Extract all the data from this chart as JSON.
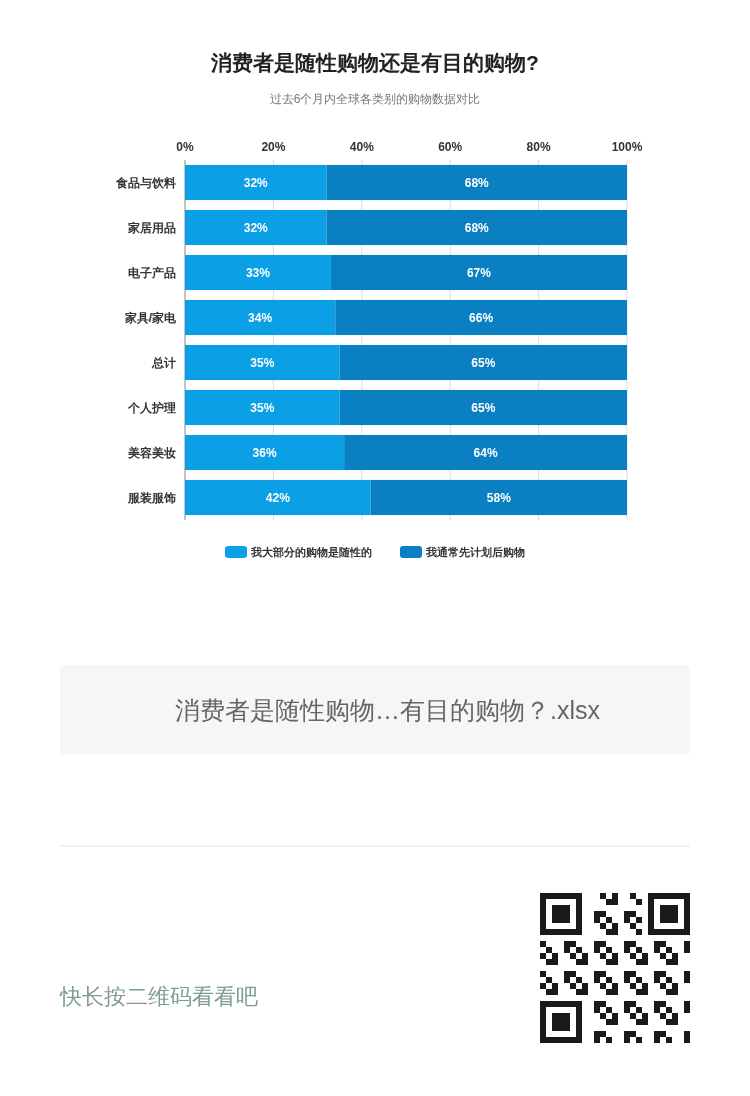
{
  "chart_data": {
    "type": "bar",
    "orientation": "horizontal",
    "stacked": true,
    "title": "消费者是随性购物还是有目的购物?",
    "subtitle": "过去6个月内全球各类别的购物数据对比",
    "categories": [
      "食品与饮料",
      "家居用品",
      "电子产品",
      "家具/家电",
      "总计",
      "个人护理",
      "美容美妆",
      "服装服饰"
    ],
    "series": [
      {
        "name": "我大部分的购物是随性的",
        "color": "#0b9fe6",
        "values": [
          32,
          32,
          33,
          34,
          35,
          35,
          36,
          42
        ],
        "value_labels": [
          "32%",
          "32%",
          "33%",
          "34%",
          "35%",
          "35%",
          "36%",
          "42%"
        ]
      },
      {
        "name": "我通常先计划后购物",
        "color": "#0a80c2",
        "values": [
          68,
          68,
          67,
          66,
          65,
          65,
          64,
          58
        ],
        "value_labels": [
          "68%",
          "68%",
          "67%",
          "66%",
          "65%",
          "65%",
          "64%",
          "58%"
        ]
      }
    ],
    "xlim": [
      0,
      100
    ],
    "xticks": [
      {
        "value": 0,
        "label": "0%"
      },
      {
        "value": 20,
        "label": "20%"
      },
      {
        "value": 40,
        "label": "40%"
      },
      {
        "value": 60,
        "label": "60%"
      },
      {
        "value": 80,
        "label": "80%"
      },
      {
        "value": 100,
        "label": "100%"
      }
    ],
    "grid": "x",
    "legend": "bottom",
    "annotations": [
      "消费者是随性购物…有目的购物？.xlsx",
      "快长按二维码看看吧"
    ]
  }
}
